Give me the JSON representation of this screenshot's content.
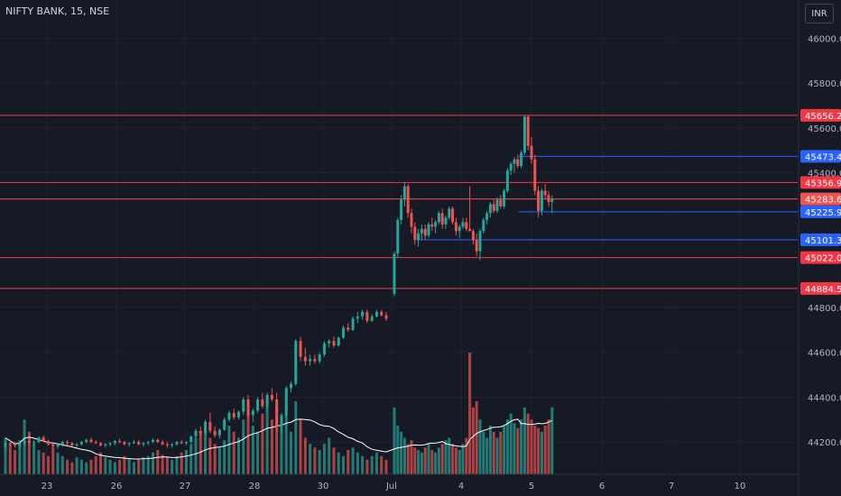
{
  "header": {
    "symbol": "NIFTY BANK, 15, NSE",
    "currency": "INR"
  },
  "colors": {
    "bg": "#161a25",
    "up": "#26a69a",
    "down": "#ef5350",
    "red_line": "#f23645",
    "blue_line": "#2962ff",
    "grid": "#1f2330",
    "ma": "#ffffff",
    "axis_text": "#b2b5be"
  },
  "chart_data": {
    "type": "candlestick",
    "x_labels": [
      "23",
      "26",
      "27",
      "28",
      "30",
      "Jul",
      "4",
      "5",
      "6",
      "7",
      "10"
    ],
    "y_ticks": [
      44200,
      44400,
      44600,
      44800,
      45400,
      45600,
      45800,
      46000
    ],
    "ylim": [
      44080,
      46130
    ],
    "price_levels": [
      {
        "value": 45656.2,
        "label": "45656.20",
        "color": "#f23645"
      },
      {
        "value": 45473.4,
        "label": "45473.40",
        "color": "#2962ff"
      },
      {
        "value": 45356.9,
        "label": "45356.90",
        "color": "#f23645"
      },
      {
        "value": 45283.6,
        "label": "45283.60",
        "color": "#ef5350"
      },
      {
        "value": 45225.9,
        "label": "45225.90",
        "color": "#2962ff"
      },
      {
        "value": 45101.3,
        "label": "45101.30",
        "color": "#2962ff"
      },
      {
        "value": 45022.05,
        "label": "45022.05",
        "color": "#f23645"
      },
      {
        "value": 44884.55,
        "label": "44884.55",
        "color": "#f23645"
      }
    ],
    "candles": [
      [
        44180,
        44200,
        44170,
        44195
      ],
      [
        44195,
        44210,
        44185,
        44190
      ],
      [
        44190,
        44200,
        44175,
        44185
      ],
      [
        44185,
        44200,
        44170,
        44195
      ],
      [
        44195,
        44215,
        44185,
        44205
      ],
      [
        44205,
        44215,
        44190,
        44195
      ],
      [
        44195,
        44210,
        44180,
        44200
      ],
      [
        44200,
        44225,
        44195,
        44220
      ],
      [
        44220,
        44230,
        44200,
        44205
      ],
      [
        44205,
        44210,
        44185,
        44190
      ],
      [
        44190,
        44200,
        44175,
        44180
      ],
      [
        44180,
        44195,
        44170,
        44190
      ],
      [
        44190,
        44205,
        44180,
        44200
      ],
      [
        44200,
        44210,
        44185,
        44195
      ],
      [
        44195,
        44200,
        44180,
        44185
      ],
      [
        44185,
        44195,
        44175,
        44190
      ],
      [
        44190,
        44205,
        44185,
        44200
      ],
      [
        44200,
        44215,
        44195,
        44210
      ],
      [
        44210,
        44220,
        44195,
        44200
      ],
      [
        44200,
        44210,
        44190,
        44195
      ],
      [
        44195,
        44200,
        44180,
        44185
      ],
      [
        44185,
        44195,
        44175,
        44190
      ],
      [
        44190,
        44200,
        44180,
        44195
      ],
      [
        44195,
        44210,
        44185,
        44205
      ],
      [
        44205,
        44215,
        44195,
        44200
      ],
      [
        44200,
        44205,
        44185,
        44190
      ],
      [
        44190,
        44200,
        44180,
        44195
      ],
      [
        44195,
        44210,
        44190,
        44200
      ],
      [
        44200,
        44210,
        44185,
        44190
      ],
      [
        44190,
        44200,
        44180,
        44195
      ],
      [
        44195,
        44205,
        44185,
        44200
      ],
      [
        44200,
        44215,
        44195,
        44210
      ],
      [
        44210,
        44215,
        44195,
        44200
      ],
      [
        44200,
        44210,
        44185,
        44190
      ],
      [
        44190,
        44200,
        44175,
        44185
      ],
      [
        44185,
        44195,
        44175,
        44190
      ],
      [
        44190,
        44205,
        44185,
        44200
      ],
      [
        44200,
        44210,
        44190,
        44195
      ],
      [
        44195,
        44205,
        44185,
        44200
      ],
      [
        44200,
        44230,
        44195,
        44225
      ],
      [
        44225,
        44260,
        44215,
        44250
      ],
      [
        44250,
        44270,
        44230,
        44240
      ],
      [
        44240,
        44300,
        44235,
        44290
      ],
      [
        44290,
        44330,
        44240,
        44250
      ],
      [
        44250,
        44270,
        44220,
        44230
      ],
      [
        44230,
        44260,
        44215,
        44255
      ],
      [
        44255,
        44310,
        44250,
        44300
      ],
      [
        44300,
        44340,
        44290,
        44330
      ],
      [
        44330,
        44350,
        44300,
        44310
      ],
      [
        44310,
        44340,
        44300,
        44335
      ],
      [
        44335,
        44400,
        44320,
        44390
      ],
      [
        44390,
        44410,
        44300,
        44320
      ],
      [
        44320,
        44350,
        44290,
        44340
      ],
      [
        44340,
        44400,
        44330,
        44390
      ],
      [
        44390,
        44420,
        44350,
        44360
      ],
      [
        44360,
        44420,
        44340,
        44410
      ],
      [
        44410,
        44440,
        44380,
        44390
      ],
      [
        44390,
        44420,
        44250,
        44270
      ],
      [
        44270,
        44330,
        44240,
        44320
      ],
      [
        44320,
        44450,
        44310,
        44440
      ],
      [
        44440,
        44470,
        44420,
        44460
      ],
      [
        44460,
        44660,
        44450,
        44650
      ],
      [
        44650,
        44670,
        44560,
        44580
      ],
      [
        44580,
        44620,
        44540,
        44560
      ],
      [
        44560,
        44590,
        44540,
        44570
      ],
      [
        44570,
        44590,
        44550,
        44560
      ],
      [
        44560,
        44600,
        44550,
        44590
      ],
      [
        44590,
        44650,
        44580,
        44640
      ],
      [
        44640,
        44660,
        44620,
        44650
      ],
      [
        44650,
        44670,
        44620,
        44630
      ],
      [
        44630,
        44670,
        44625,
        44665
      ],
      [
        44665,
        44720,
        44660,
        44710
      ],
      [
        44710,
        44730,
        44690,
        44700
      ],
      [
        44700,
        44760,
        44695,
        44750
      ],
      [
        44750,
        44780,
        44730,
        44760
      ],
      [
        44760,
        44790,
        44745,
        44780
      ],
      [
        44780,
        44790,
        44730,
        44740
      ],
      [
        44740,
        44770,
        44735,
        44760
      ],
      [
        44760,
        44790,
        44755,
        44780
      ],
      [
        44780,
        44790,
        44760,
        44765
      ],
      [
        44765,
        44780,
        44740,
        44750
      ],
      [
        44860,
        45050,
        44850,
        45040
      ],
      [
        45040,
        45200,
        45020,
        45190
      ],
      [
        45190,
        45300,
        45170,
        45280
      ],
      [
        45280,
        45356,
        45250,
        45340
      ],
      [
        45340,
        45350,
        45200,
        45220
      ],
      [
        45220,
        45240,
        45130,
        45160
      ],
      [
        45160,
        45180,
        45080,
        45100
      ],
      [
        45100,
        45150,
        45070,
        45130
      ],
      [
        45130,
        45170,
        45100,
        45150
      ],
      [
        45150,
        45170,
        45100,
        45120
      ],
      [
        45120,
        45180,
        45110,
        45170
      ],
      [
        45170,
        45200,
        45140,
        45160
      ],
      [
        45160,
        45190,
        45130,
        45180
      ],
      [
        45180,
        45230,
        45170,
        45220
      ],
      [
        45220,
        45240,
        45150,
        45170
      ],
      [
        45170,
        45210,
        45150,
        45200
      ],
      [
        45200,
        45250,
        45190,
        45240
      ],
      [
        45240,
        45250,
        45170,
        45180
      ],
      [
        45180,
        45200,
        45120,
        45140
      ],
      [
        45140,
        45170,
        45110,
        45160
      ],
      [
        45160,
        45200,
        45150,
        45180
      ],
      [
        45180,
        45200,
        45140,
        45150
      ],
      [
        45150,
        45340,
        45140,
        45140
      ],
      [
        45140,
        45150,
        45080,
        45100
      ],
      [
        45100,
        45130,
        45030,
        45050
      ],
      [
        45050,
        45150,
        45010,
        45140
      ],
      [
        45140,
        45200,
        45130,
        45190
      ],
      [
        45190,
        45230,
        45170,
        45220
      ],
      [
        45220,
        45270,
        45200,
        45260
      ],
      [
        45260,
        45280,
        45220,
        45230
      ],
      [
        45230,
        45290,
        45220,
        45280
      ],
      [
        45280,
        45300,
        45240,
        45250
      ],
      [
        45250,
        45330,
        45240,
        45320
      ],
      [
        45320,
        45420,
        45310,
        45410
      ],
      [
        45410,
        45450,
        45390,
        45440
      ],
      [
        45440,
        45470,
        45400,
        45460
      ],
      [
        45460,
        45480,
        45420,
        45430
      ],
      [
        45430,
        45500,
        45420,
        45490
      ],
      [
        45490,
        45656,
        45480,
        45650
      ],
      [
        45650,
        45656,
        45500,
        45520
      ],
      [
        45520,
        45560,
        45440,
        45460
      ],
      [
        45460,
        45480,
        45300,
        45320
      ],
      [
        45320,
        45340,
        45200,
        45230
      ],
      [
        45230,
        45330,
        45210,
        45320
      ],
      [
        45320,
        45350,
        45280,
        45300
      ],
      [
        45300,
        45320,
        45250,
        45270
      ],
      [
        45270,
        45300,
        45220,
        45283
      ]
    ],
    "volume": [
      0.3,
      0.25,
      0.2,
      0.28,
      0.45,
      0.35,
      0.25,
      0.2,
      0.18,
      0.15,
      0.22,
      0.18,
      0.15,
      0.12,
      0.1,
      0.14,
      0.12,
      0.1,
      0.12,
      0.15,
      0.18,
      0.14,
      0.12,
      0.1,
      0.12,
      0.15,
      0.13,
      0.1,
      0.12,
      0.14,
      0.15,
      0.18,
      0.2,
      0.16,
      0.14,
      0.12,
      0.15,
      0.18,
      0.2,
      0.25,
      0.3,
      0.35,
      0.38,
      0.3,
      0.25,
      0.22,
      0.28,
      0.4,
      0.35,
      0.3,
      0.45,
      0.55,
      0.4,
      0.35,
      0.5,
      0.6,
      0.45,
      0.55,
      0.4,
      0.5,
      0.35,
      0.6,
      0.45,
      0.3,
      0.25,
      0.22,
      0.2,
      0.25,
      0.3,
      0.22,
      0.18,
      0.15,
      0.2,
      0.22,
      0.18,
      0.15,
      0.12,
      0.15,
      0.18,
      0.15,
      0.12,
      0.55,
      0.4,
      0.35,
      0.3,
      0.25,
      0.28,
      0.22,
      0.2,
      0.18,
      0.22,
      0.25,
      0.2,
      0.18,
      0.22,
      0.25,
      0.28,
      0.3,
      0.25,
      0.22,
      0.2,
      0.25,
      0.3,
      1.0,
      0.55,
      0.6,
      0.45,
      0.35,
      0.3,
      0.4,
      0.35,
      0.3,
      0.35,
      0.4,
      0.45,
      0.5,
      0.42,
      0.38,
      0.45,
      0.55,
      0.5,
      0.45,
      0.4,
      0.38,
      0.35,
      0.4,
      0.45,
      0.55
    ]
  }
}
